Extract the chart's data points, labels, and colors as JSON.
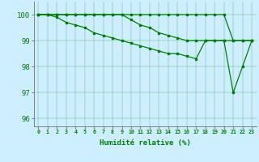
{
  "title": "",
  "xlabel": "Humidité relative (%)",
  "ylabel": "",
  "bg_color": "#cceeff",
  "line_color": "#008000",
  "xlim": [
    -0.5,
    23.5
  ],
  "ylim": [
    95.7,
    100.5
  ],
  "yticks": [
    96,
    97,
    98,
    99,
    100
  ],
  "xticks": [
    0,
    1,
    2,
    3,
    4,
    5,
    6,
    7,
    8,
    9,
    10,
    11,
    12,
    13,
    14,
    15,
    16,
    17,
    18,
    19,
    20,
    21,
    22,
    23
  ],
  "series": [
    [
      100,
      100,
      100,
      100,
      100,
      100,
      100,
      100,
      100,
      100,
      100,
      100,
      100,
      100,
      100,
      100,
      100,
      100,
      100,
      100,
      100,
      99.0,
      99.0,
      99.0
    ],
    [
      100,
      100,
      100,
      100,
      100,
      100,
      100,
      100,
      100,
      100,
      99.8,
      99.6,
      99.5,
      99.3,
      99.2,
      99.1,
      99.0,
      99.0,
      99.0,
      99.0,
      99.0,
      97.0,
      98.0,
      99.0
    ],
    [
      100,
      100,
      99.9,
      99.7,
      99.6,
      99.5,
      99.3,
      99.2,
      99.1,
      99.0,
      98.9,
      98.8,
      98.7,
      98.6,
      98.5,
      98.5,
      98.4,
      98.3,
      99.0,
      99.0,
      99.0,
      99.0,
      99.0,
      99.0
    ]
  ]
}
